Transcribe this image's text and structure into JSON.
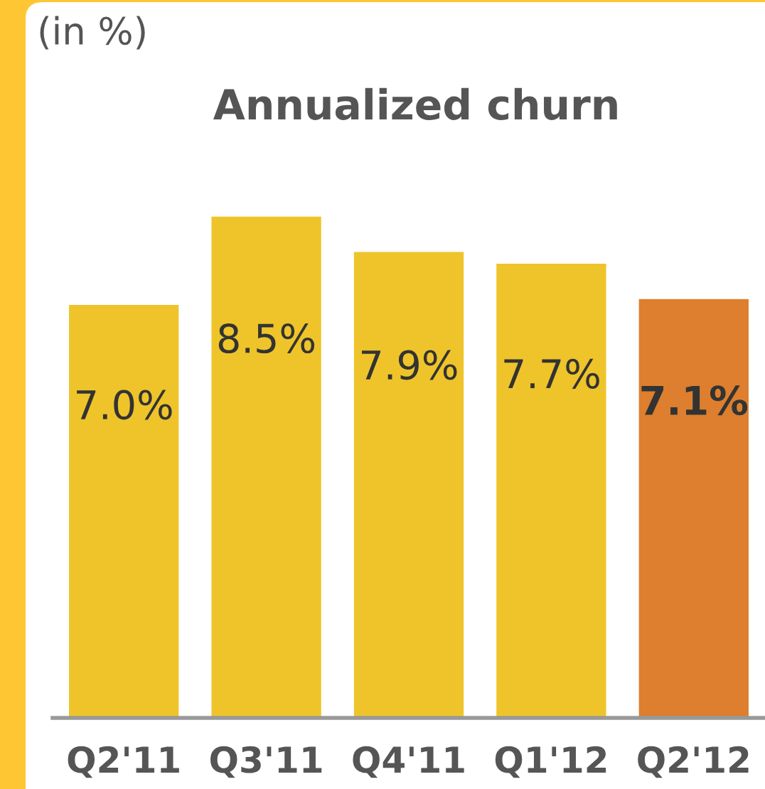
{
  "chart_data": {
    "type": "bar",
    "title": "Annualized churn",
    "annotations": [
      "(in %)"
    ],
    "categories": [
      "Q2'11",
      "Q3'11",
      "Q4'11",
      "Q1'12",
      "Q2'12"
    ],
    "values": [
      7.0,
      8.5,
      7.9,
      7.7,
      7.1
    ],
    "colors": [
      "#eec42a",
      "#eec42a",
      "#eec42a",
      "#eec42a",
      "#dd7f2e"
    ],
    "value_labels": [
      "7.0%",
      "8.5%",
      "7.9%",
      "7.7%",
      "7.1%"
    ]
  }
}
